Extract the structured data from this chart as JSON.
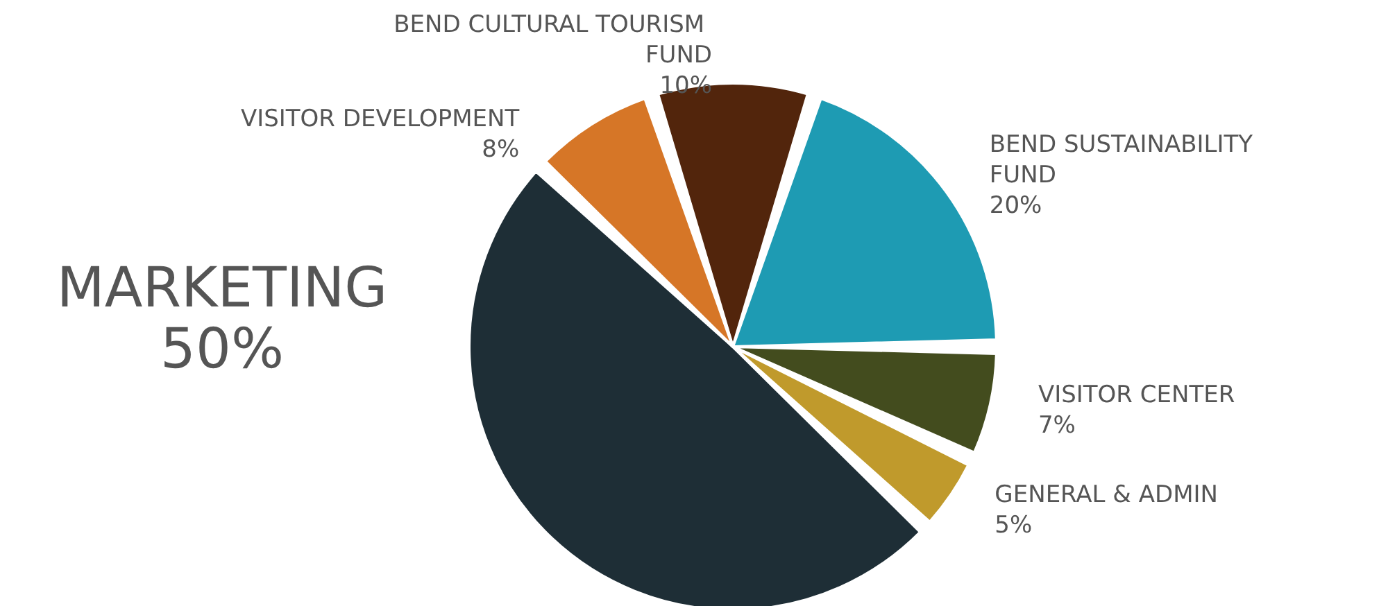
{
  "chart_data": {
    "type": "pie",
    "categories": [
      "BEND CULTURAL TOURISM FUND",
      "BEND SUSTAINABILITY FUND",
      "VISITOR CENTER",
      "GENERAL & ADMIN",
      "MARKETING",
      "VISITOR DEVELOPMENT"
    ],
    "values": [
      10,
      20,
      7,
      5,
      50,
      8
    ],
    "colors": [
      "#52250c",
      "#1e9bb3",
      "#434c1e",
      "#c09a2c",
      "#1e2e36",
      "#d67627"
    ],
    "value_labels": [
      "10%",
      "20%",
      "7%",
      "5%",
      "50%",
      "8%"
    ],
    "legend": false
  }
}
